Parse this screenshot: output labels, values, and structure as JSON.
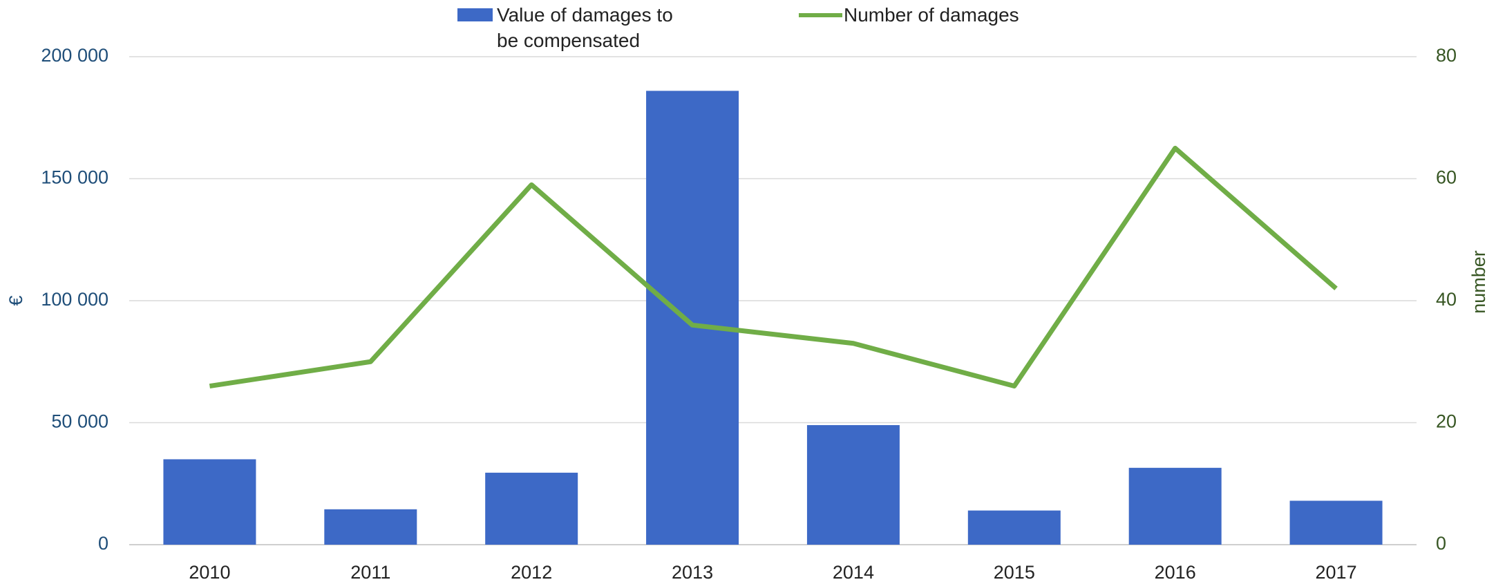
{
  "chart_data": {
    "type": "bar_line",
    "categories": [
      "2010",
      "2011",
      "2012",
      "2013",
      "2014",
      "2015",
      "2016",
      "2017"
    ],
    "series": [
      {
        "name": "Value of damages to be compensated",
        "color": "#3d69c6",
        "type": "bar",
        "axis": "y",
        "values": [
          35000,
          14500,
          29500,
          186000,
          49000,
          14000,
          31500,
          18000
        ]
      },
      {
        "name": "Number of damages",
        "color": "#70ad47",
        "type": "line",
        "axis": "y2",
        "values": [
          26,
          30,
          59,
          36,
          33,
          26,
          65,
          42
        ]
      }
    ],
    "ylabel": "€",
    "y2label": "number",
    "ylim": [
      0,
      200000
    ],
    "yticks": [
      0,
      {
        "value": 50000,
        "label": "50 000"
      },
      {
        "value": 100000,
        "label": "100 000"
      },
      {
        "value": 150000,
        "label": "150 000"
      },
      {
        "value": 200000,
        "label": "200 000"
      }
    ],
    "y2lim": [
      0,
      80
    ],
    "y2ticks": [
      0,
      20,
      40,
      60,
      80
    ],
    "grid": true,
    "legend": "top"
  }
}
